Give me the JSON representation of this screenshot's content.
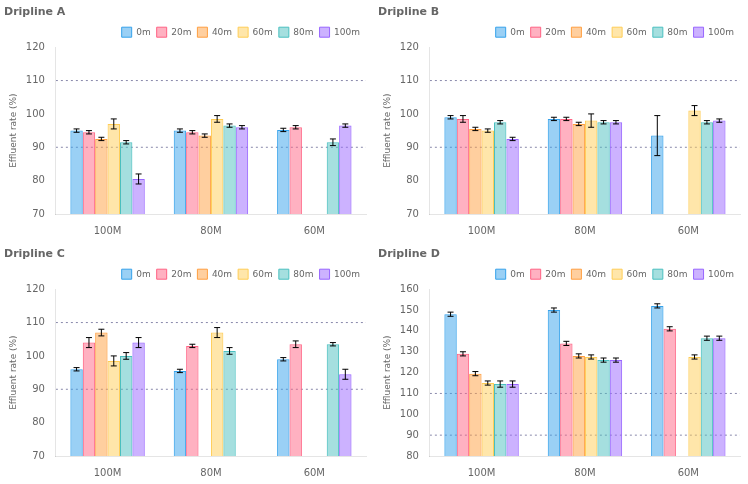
{
  "chart_data": [
    {
      "type": "bar",
      "title": "Dripline A",
      "ylabel": "Effluent rate (%)",
      "categories": [
        "100M",
        "80M",
        "60M"
      ],
      "series": [
        {
          "name": "0m",
          "values": [
            95.0,
            95.0,
            95.2
          ],
          "errors": [
            0.5,
            0.5,
            0.5
          ]
        },
        {
          "name": "20m",
          "values": [
            94.5,
            94.5,
            96.0
          ],
          "errors": [
            0.5,
            0.5,
            0.5
          ]
        },
        {
          "name": "40m",
          "values": [
            92.5,
            93.5,
            null
          ],
          "errors": [
            0.5,
            0.5,
            null
          ]
        },
        {
          "name": "60m",
          "values": [
            97.0,
            98.5,
            null
          ],
          "errors": [
            1.5,
            1.0,
            null
          ]
        },
        {
          "name": "80m",
          "values": [
            91.5,
            96.5,
            91.5
          ],
          "errors": [
            0.5,
            0.5,
            1.0
          ]
        },
        {
          "name": "100m",
          "values": [
            80.5,
            96.0,
            96.5
          ],
          "errors": [
            1.5,
            0.5,
            0.5
          ]
        }
      ],
      "hlines": [
        90,
        110
      ],
      "ylim": [
        70,
        120
      ],
      "yticks": [
        70,
        80,
        90,
        100,
        110,
        120
      ],
      "grid": false,
      "legend": "upper right"
    },
    {
      "type": "bar",
      "title": "Dripline B",
      "ylabel": "Effluent rate (%)",
      "categories": [
        "100M",
        "80M",
        "60M"
      ],
      "series": [
        {
          "name": "0m",
          "values": [
            99.0,
            98.5,
            93.5
          ],
          "errors": [
            0.5,
            0.5,
            6.0
          ]
        },
        {
          "name": "20m",
          "values": [
            98.5,
            98.5,
            null
          ],
          "errors": [
            1.0,
            0.5,
            null
          ]
        },
        {
          "name": "40m",
          "values": [
            95.5,
            97.0,
            null
          ],
          "errors": [
            0.5,
            0.5,
            null
          ]
        },
        {
          "name": "60m",
          "values": [
            95.0,
            98.0,
            101.0
          ],
          "errors": [
            0.5,
            2.0,
            1.5
          ]
        },
        {
          "name": "80m",
          "values": [
            97.5,
            97.5,
            97.5
          ],
          "errors": [
            0.5,
            0.5,
            0.5
          ]
        },
        {
          "name": "100m",
          "values": [
            92.5,
            97.5,
            98.0
          ],
          "errors": [
            0.5,
            0.5,
            0.5
          ]
        }
      ],
      "hlines": [
        90,
        110
      ],
      "ylim": [
        70,
        120
      ],
      "yticks": [
        70,
        80,
        90,
        100,
        110,
        120
      ],
      "grid": false,
      "legend": "upper right"
    },
    {
      "type": "bar",
      "title": "Dripline C",
      "ylabel": "Effluent rate (%)",
      "categories": [
        "100M",
        "80M",
        "60M"
      ],
      "series": [
        {
          "name": "0m",
          "values": [
            96.0,
            95.5,
            99.0
          ],
          "errors": [
            0.5,
            0.5,
            0.5
          ]
        },
        {
          "name": "20m",
          "values": [
            104.0,
            103.0,
            103.5
          ],
          "errors": [
            1.5,
            0.5,
            1.0
          ]
        },
        {
          "name": "40m",
          "values": [
            107.0,
            null,
            null
          ],
          "errors": [
            1.0,
            null,
            null
          ]
        },
        {
          "name": "60m",
          "values": [
            98.5,
            107.0,
            null
          ],
          "errors": [
            1.5,
            1.5,
            null
          ]
        },
        {
          "name": "80m",
          "values": [
            100.0,
            101.5,
            103.5
          ],
          "errors": [
            1.0,
            1.0,
            0.5
          ]
        },
        {
          "name": "100m",
          "values": [
            104.0,
            null,
            94.5
          ],
          "errors": [
            1.5,
            null,
            1.5
          ]
        }
      ],
      "hlines": [
        90,
        110
      ],
      "ylim": [
        70,
        120
      ],
      "yticks": [
        70,
        80,
        90,
        100,
        110,
        120
      ],
      "grid": false,
      "legend": "upper right"
    },
    {
      "type": "bar",
      "title": "Dripline D",
      "ylabel": "Effluent rate (%)",
      "categories": [
        "100M",
        "80M",
        "60M"
      ],
      "series": [
        {
          "name": "0m",
          "values": [
            148.0,
            150.0,
            152.0
          ],
          "errors": [
            1.0,
            1.0,
            1.0
          ]
        },
        {
          "name": "20m",
          "values": [
            129.0,
            134.0,
            141.0
          ],
          "errors": [
            1.0,
            1.0,
            1.0
          ]
        },
        {
          "name": "40m",
          "values": [
            119.5,
            128.0,
            null
          ],
          "errors": [
            1.0,
            1.0,
            null
          ]
        },
        {
          "name": "60m",
          "values": [
            115.0,
            127.5,
            127.5
          ],
          "errors": [
            1.0,
            1.0,
            1.0
          ]
        },
        {
          "name": "80m",
          "values": [
            114.5,
            126.0,
            136.5
          ],
          "errors": [
            1.5,
            1.0,
            1.0
          ]
        },
        {
          "name": "100m",
          "values": [
            114.5,
            126.0,
            136.5
          ],
          "errors": [
            1.5,
            1.0,
            1.0
          ]
        }
      ],
      "hlines": [
        90,
        110
      ],
      "ylim": [
        80,
        160
      ],
      "yticks": [
        80,
        90,
        100,
        110,
        120,
        130,
        140,
        150,
        160
      ],
      "grid": false,
      "legend": "upper right"
    }
  ]
}
